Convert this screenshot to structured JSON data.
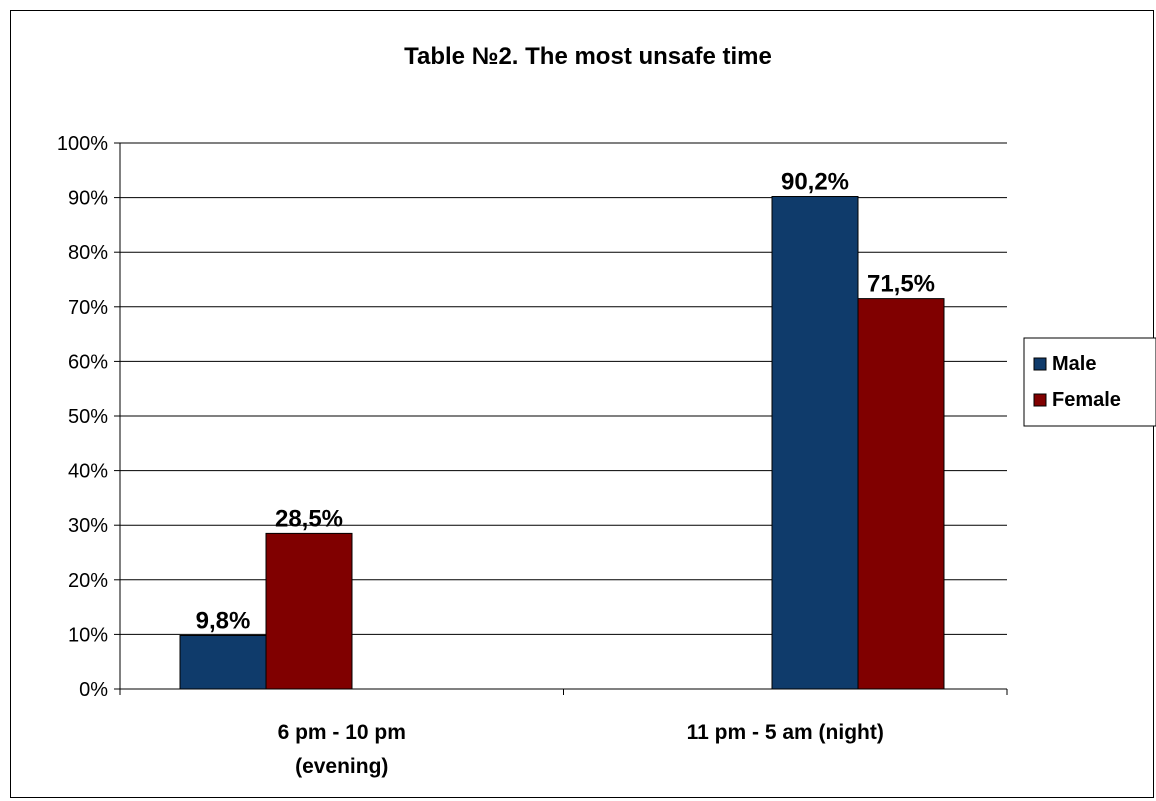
{
  "chart_data": {
    "type": "bar",
    "title": "Table №2. The most unsafe time",
    "categories": [
      [
        "6 pm - 10 pm",
        "(evening)"
      ],
      [
        "11 pm - 5 am (night)"
      ]
    ],
    "series": [
      {
        "name": "Male",
        "color": "#0f3b6b",
        "values": [
          9.8,
          90.2
        ],
        "labels": [
          "9,8%",
          "90,2%"
        ]
      },
      {
        "name": "Female",
        "color": "#800000",
        "values": [
          28.5,
          71.5
        ],
        "labels": [
          "28,5%",
          "71,5%"
        ]
      }
    ],
    "ylim": [
      0,
      100
    ],
    "yticks": [
      "0%",
      "10%",
      "20%",
      "30%",
      "40%",
      "50%",
      "60%",
      "70%",
      "80%",
      "90%",
      "100%"
    ],
    "grid": true,
    "legend": "right"
  }
}
